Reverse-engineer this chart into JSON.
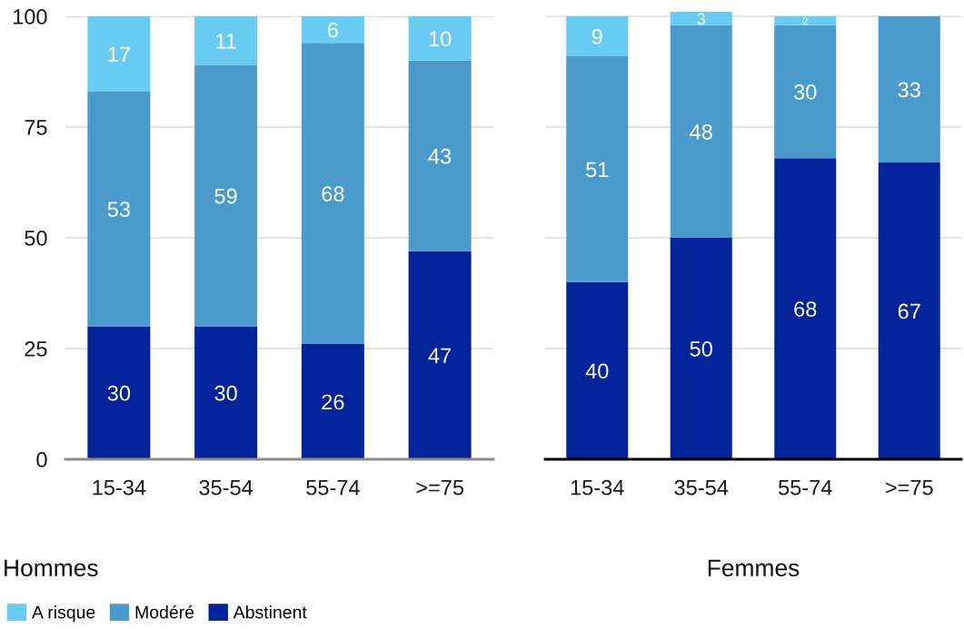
{
  "chart_data": [
    {
      "type": "bar",
      "title": "Hommes",
      "stacked": true,
      "categories": [
        "15-34",
        "35-54",
        "55-74",
        ">=75"
      ],
      "series": [
        {
          "name": "Abstinent",
          "color": "#03239a",
          "values": [
            30,
            30,
            26,
            47
          ]
        },
        {
          "name": "Modéré",
          "color": "#4a9bcb",
          "values": [
            53,
            59,
            68,
            43
          ]
        },
        {
          "name": "A risque",
          "color": "#68cbf1",
          "values": [
            17,
            11,
            6,
            10
          ]
        }
      ],
      "ylim": [
        0,
        100
      ],
      "yticks": [
        0,
        25,
        50,
        75,
        100
      ],
      "grid": "y",
      "data_labels": true,
      "legend": "bottom"
    },
    {
      "type": "bar",
      "title": "Femmes",
      "stacked": true,
      "categories": [
        "15-34",
        "35-54",
        "55-74",
        ">=75"
      ],
      "series": [
        {
          "color": "#03239a",
          "values": [
            40,
            50,
            68,
            67
          ],
          "value_labels": [
            "40",
            "50",
            "68",
            "67"
          ]
        },
        {
          "color": "#4a9bcb",
          "values": [
            51,
            48,
            30,
            33
          ],
          "value_labels": [
            "51",
            "48",
            "30",
            "33"
          ]
        },
        {
          "color": "#68cbf1",
          "values": [
            9,
            3,
            2,
            null
          ],
          "value_labels": [
            "9",
            "3",
            "2",
            null
          ]
        }
      ],
      "ylim": [
        0,
        101
      ],
      "yticks": [
        0,
        25,
        50,
        75,
        100
      ],
      "grid": "y",
      "tick_labels": "x"
    }
  ]
}
